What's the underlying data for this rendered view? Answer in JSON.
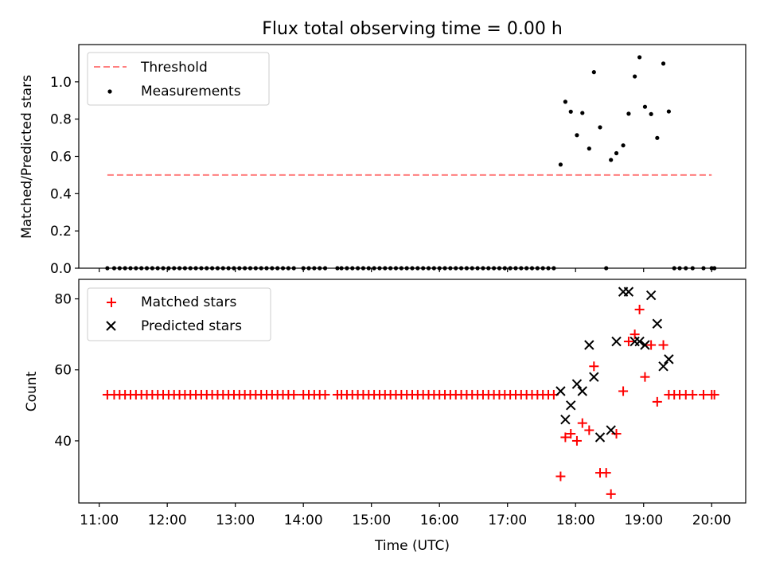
{
  "title": "Flux total observing time = 0.00 h",
  "colors": {
    "threshold": "#ff7f7f",
    "measurements": "#000000",
    "matched": "#ff0000",
    "predicted": "#000000"
  },
  "chart_data": [
    {
      "type": "scatter",
      "name": "ratio-panel",
      "ylabel": "Matched/Predicted stars",
      "xlabel": "",
      "xlim": [
        10.7,
        20.5
      ],
      "ylim": [
        0.0,
        1.2
      ],
      "yticks": [
        0.0,
        0.2,
        0.4,
        0.6,
        0.8,
        1.0
      ],
      "ytick_labels": [
        "0.0",
        "0.2",
        "0.4",
        "0.6",
        "0.8",
        "1.0"
      ],
      "legend_position": "top-left",
      "legend": [
        {
          "label": "Threshold",
          "marker": "dashed-line"
        },
        {
          "label": "Measurements",
          "marker": "dot"
        }
      ],
      "threshold": {
        "x": [
          11.12,
          20.0
        ],
        "y": 0.5
      },
      "series": [
        {
          "name": "Measurements",
          "x": [
            11.12,
            11.22,
            11.3,
            11.38,
            11.46,
            11.54,
            11.62,
            11.7,
            11.78,
            11.86,
            11.94,
            12.02,
            12.1,
            12.18,
            12.26,
            12.34,
            12.42,
            12.5,
            12.58,
            12.66,
            12.74,
            12.82,
            12.9,
            12.98,
            13.06,
            13.14,
            13.22,
            13.3,
            13.38,
            13.46,
            13.54,
            13.62,
            13.7,
            13.78,
            13.86,
            14.0,
            14.08,
            14.16,
            14.24,
            14.32,
            14.5,
            14.56,
            14.64,
            14.72,
            14.8,
            14.88,
            14.96,
            15.04,
            15.12,
            15.2,
            15.28,
            15.36,
            15.44,
            15.52,
            15.6,
            15.68,
            15.76,
            15.84,
            15.92,
            16.0,
            16.08,
            16.16,
            16.24,
            16.32,
            16.4,
            16.48,
            16.56,
            16.64,
            16.72,
            16.8,
            16.88,
            16.96,
            17.04,
            17.12,
            17.2,
            17.28,
            17.36,
            17.44,
            17.52,
            17.6,
            17.68,
            17.78,
            17.85,
            17.93,
            18.02,
            18.1,
            18.2,
            18.27,
            18.36,
            18.45,
            18.52,
            18.6,
            18.7,
            18.78,
            18.87,
            18.94,
            19.02,
            19.11,
            19.2,
            19.29,
            19.37,
            19.45,
            19.53,
            19.62,
            19.72,
            19.88,
            20.0,
            20.04
          ],
          "y": [
            0,
            0,
            0,
            0,
            0,
            0,
            0,
            0,
            0,
            0,
            0,
            0,
            0,
            0,
            0,
            0,
            0,
            0,
            0,
            0,
            0,
            0,
            0,
            0,
            0,
            0,
            0,
            0,
            0,
            0,
            0,
            0,
            0,
            0,
            0,
            0,
            0,
            0,
            0,
            0,
            0,
            0,
            0,
            0,
            0,
            0,
            0,
            0,
            0,
            0,
            0,
            0,
            0,
            0,
            0,
            0,
            0,
            0,
            0,
            0,
            0,
            0,
            0,
            0,
            0,
            0,
            0,
            0,
            0,
            0,
            0,
            0,
            0,
            0,
            0,
            0,
            0,
            0,
            0,
            0,
            0,
            0.556,
            0.893,
            0.84,
            0.714,
            0.833,
            0.642,
            1.052,
            0.756,
            0.0,
            0.581,
            0.617,
            0.659,
            0.829,
            1.029,
            1.132,
            0.866,
            0.827,
            0.699,
            1.098,
            0.841,
            0,
            0,
            0,
            0,
            0,
            0,
            0
          ]
        }
      ]
    },
    {
      "type": "scatter",
      "name": "count-panel",
      "ylabel": "Count",
      "xlabel": "Time (UTC)",
      "xlim": [
        10.7,
        20.5
      ],
      "ylim": [
        22.5,
        85.5
      ],
      "yticks": [
        40,
        60,
        80
      ],
      "ytick_labels": [
        "40",
        "60",
        "80"
      ],
      "xticks": [
        11,
        12,
        13,
        14,
        15,
        16,
        17,
        18,
        19,
        20
      ],
      "xtick_labels": [
        "11:00",
        "12:00",
        "13:00",
        "14:00",
        "15:00",
        "16:00",
        "17:00",
        "18:00",
        "19:00",
        "20:00"
      ],
      "legend_position": "top-left",
      "legend": [
        {
          "label": "Matched stars",
          "marker": "plus"
        },
        {
          "label": "Predicted stars",
          "marker": "x"
        }
      ],
      "series": [
        {
          "name": "Matched stars",
          "x": [
            11.12,
            11.22,
            11.3,
            11.38,
            11.46,
            11.54,
            11.62,
            11.7,
            11.78,
            11.86,
            11.94,
            12.02,
            12.1,
            12.18,
            12.26,
            12.34,
            12.42,
            12.5,
            12.58,
            12.66,
            12.74,
            12.82,
            12.9,
            12.98,
            13.06,
            13.14,
            13.22,
            13.3,
            13.38,
            13.46,
            13.54,
            13.62,
            13.7,
            13.78,
            13.86,
            14.0,
            14.08,
            14.16,
            14.24,
            14.32,
            14.5,
            14.56,
            14.64,
            14.72,
            14.8,
            14.88,
            14.96,
            15.04,
            15.12,
            15.2,
            15.28,
            15.36,
            15.44,
            15.52,
            15.6,
            15.68,
            15.76,
            15.84,
            15.92,
            16.0,
            16.08,
            16.16,
            16.24,
            16.32,
            16.4,
            16.48,
            16.56,
            16.64,
            16.72,
            16.8,
            16.88,
            16.96,
            17.04,
            17.12,
            17.2,
            17.28,
            17.36,
            17.44,
            17.52,
            17.6,
            17.68,
            17.78,
            17.85,
            17.93,
            18.02,
            18.1,
            18.2,
            18.27,
            18.36,
            18.45,
            18.52,
            18.6,
            18.7,
            18.78,
            18.87,
            18.94,
            19.02,
            19.11,
            19.2,
            19.29,
            19.37,
            19.45,
            19.53,
            19.62,
            19.72,
            19.88,
            20.0,
            20.04
          ],
          "y": [
            53,
            53,
            53,
            53,
            53,
            53,
            53,
            53,
            53,
            53,
            53,
            53,
            53,
            53,
            53,
            53,
            53,
            53,
            53,
            53,
            53,
            53,
            53,
            53,
            53,
            53,
            53,
            53,
            53,
            53,
            53,
            53,
            53,
            53,
            53,
            53,
            53,
            53,
            53,
            53,
            53,
            53,
            53,
            53,
            53,
            53,
            53,
            53,
            53,
            53,
            53,
            53,
            53,
            53,
            53,
            53,
            53,
            53,
            53,
            53,
            53,
            53,
            53,
            53,
            53,
            53,
            53,
            53,
            53,
            53,
            53,
            53,
            53,
            53,
            53,
            53,
            53,
            53,
            53,
            53,
            53,
            30,
            41,
            42,
            40,
            45,
            43,
            61,
            31,
            31,
            25,
            42,
            54,
            68,
            70,
            77,
            58,
            67,
            51,
            67,
            53,
            53,
            53,
            53,
            53,
            53,
            53,
            53
          ]
        },
        {
          "name": "Predicted stars",
          "x": [
            17.78,
            17.85,
            17.93,
            18.02,
            18.1,
            18.2,
            18.27,
            18.36,
            18.52,
            18.6,
            18.7,
            18.78,
            18.87,
            18.94,
            19.02,
            19.11,
            19.2,
            19.29,
            19.37
          ],
          "y": [
            54,
            46,
            50,
            56,
            54,
            67,
            58,
            41,
            43,
            68,
            82,
            82,
            68,
            68,
            67,
            81,
            73,
            61,
            63
          ]
        }
      ]
    }
  ]
}
